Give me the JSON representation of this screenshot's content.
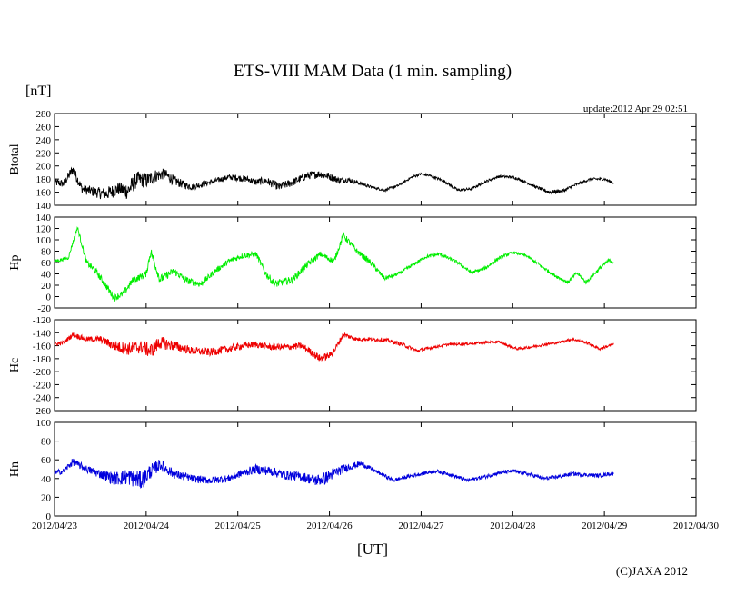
{
  "chart_data": {
    "type": "line",
    "title": "ETS-VIII MAM Data (1 min. sampling)",
    "yunit": "[nT]",
    "xlabel": "[UT]",
    "update_text": "update:2012 Apr 29 02:51",
    "copyright": "(C)JAXA 2012",
    "x_ticks": [
      "2012/04/23",
      "2012/04/24",
      "2012/04/25",
      "2012/04/26",
      "2012/04/27",
      "2012/04/28",
      "2012/04/29",
      "2012/04/30"
    ],
    "xlim": [
      0,
      7
    ],
    "data_end_day": 6.1,
    "panels": [
      {
        "name": "Btotal",
        "color": "#000000",
        "ylim": [
          140,
          280
        ],
        "yticks": [
          "140",
          "160",
          "180",
          "200",
          "220",
          "240",
          "260",
          "280"
        ],
        "x": [
          0,
          0.1,
          0.2,
          0.3,
          0.45,
          0.55,
          0.7,
          0.8,
          0.9,
          1.0,
          1.1,
          1.2,
          1.3,
          1.4,
          1.5,
          1.7,
          1.9,
          2.0,
          2.1,
          2.2,
          2.3,
          2.45,
          2.6,
          2.75,
          2.9,
          3.0,
          3.1,
          3.2,
          3.3,
          3.45,
          3.6,
          3.75,
          3.9,
          4.0,
          4.1,
          4.25,
          4.4,
          4.55,
          4.7,
          4.85,
          5.0,
          5.1,
          5.25,
          5.4,
          5.55,
          5.7,
          5.85,
          6.0,
          6.1
        ],
        "y": [
          175,
          173,
          195,
          165,
          160,
          157,
          165,
          162,
          180,
          178,
          185,
          188,
          178,
          172,
          168,
          175,
          183,
          182,
          180,
          175,
          178,
          168,
          175,
          185,
          188,
          184,
          178,
          179,
          175,
          168,
          163,
          170,
          183,
          188,
          185,
          177,
          163,
          165,
          176,
          184,
          183,
          178,
          168,
          160,
          162,
          172,
          180,
          180,
          174
        ],
        "noise": [
          6,
          6,
          8,
          7,
          8,
          10,
          10,
          14,
          12,
          12,
          10,
          8,
          8,
          6,
          5,
          4,
          4,
          5,
          5,
          5,
          6,
          6,
          6,
          6,
          6,
          6,
          5,
          4,
          3,
          2,
          2,
          2,
          2,
          2,
          2,
          2,
          2,
          2,
          2,
          2,
          2,
          2,
          2,
          3,
          3,
          2,
          2,
          2,
          2
        ]
      },
      {
        "name": "Hp",
        "color": "#00ee00",
        "ylim": [
          -20,
          140
        ],
        "yticks": [
          "-20",
          "0",
          "20",
          "40",
          "60",
          "80",
          "100",
          "120",
          "140"
        ],
        "x": [
          0,
          0.15,
          0.25,
          0.35,
          0.45,
          0.55,
          0.65,
          0.75,
          0.85,
          1.0,
          1.05,
          1.15,
          1.3,
          1.45,
          1.6,
          1.75,
          1.9,
          2.05,
          2.2,
          2.3,
          2.4,
          2.6,
          2.75,
          2.9,
          3.05,
          3.15,
          3.3,
          3.45,
          3.6,
          3.75,
          3.9,
          4.05,
          4.2,
          4.4,
          4.55,
          4.7,
          4.85,
          5.0,
          5.15,
          5.3,
          5.45,
          5.6,
          5.7,
          5.8,
          5.95,
          6.05,
          6.1
        ],
        "y": [
          62,
          68,
          122,
          60,
          45,
          22,
          -2,
          5,
          28,
          40,
          80,
          30,
          45,
          28,
          22,
          45,
          62,
          72,
          75,
          42,
          22,
          30,
          55,
          75,
          62,
          108,
          80,
          60,
          32,
          40,
          55,
          70,
          75,
          60,
          42,
          50,
          68,
          78,
          72,
          55,
          38,
          25,
          42,
          25,
          50,
          64,
          60
        ],
        "noise": [
          3,
          3,
          4,
          5,
          6,
          6,
          6,
          6,
          6,
          6,
          8,
          8,
          6,
          6,
          6,
          5,
          5,
          5,
          5,
          6,
          7,
          6,
          6,
          5,
          5,
          6,
          5,
          5,
          4,
          3,
          3,
          3,
          3,
          3,
          3,
          3,
          3,
          2,
          2,
          3,
          3,
          3,
          3,
          3,
          3,
          3,
          3
        ]
      },
      {
        "name": "Hc",
        "color": "#ee0000",
        "ylim": [
          -260,
          -120
        ],
        "yticks": [
          "-260",
          "-240",
          "-220",
          "-200",
          "-180",
          "-160",
          "-140",
          "-120"
        ],
        "x": [
          0,
          0.1,
          0.2,
          0.35,
          0.5,
          0.65,
          0.8,
          0.95,
          1.05,
          1.15,
          1.3,
          1.5,
          1.7,
          1.9,
          2.05,
          2.2,
          2.35,
          2.55,
          2.7,
          2.9,
          3.0,
          3.05,
          3.15,
          3.3,
          3.45,
          3.6,
          3.8,
          3.95,
          4.15,
          4.3,
          4.5,
          4.7,
          4.85,
          4.95,
          5.05,
          5.2,
          5.35,
          5.5,
          5.65,
          5.8,
          5.95,
          6.05,
          6.1
        ],
        "y": [
          -158,
          -155,
          -143,
          -150,
          -150,
          -160,
          -165,
          -162,
          -168,
          -155,
          -160,
          -168,
          -170,
          -165,
          -160,
          -158,
          -162,
          -162,
          -160,
          -180,
          -175,
          -168,
          -143,
          -150,
          -150,
          -151,
          -158,
          -168,
          -162,
          -158,
          -157,
          -155,
          -154,
          -160,
          -165,
          -162,
          -158,
          -155,
          -150,
          -155,
          -165,
          -160,
          -158
        ],
        "noise": [
          3,
          3,
          4,
          4,
          5,
          8,
          10,
          10,
          12,
          10,
          8,
          6,
          6,
          6,
          5,
          5,
          5,
          5,
          5,
          6,
          5,
          5,
          4,
          3,
          3,
          3,
          3,
          3,
          2,
          2,
          2,
          2,
          2,
          2,
          2,
          2,
          2,
          2,
          2,
          2,
          2,
          2,
          2
        ]
      },
      {
        "name": "Hn",
        "color": "#0000dd",
        "ylim": [
          0,
          100
        ],
        "yticks": [
          "0",
          "20",
          "40",
          "60",
          "80",
          "100"
        ],
        "x": [
          0,
          0.1,
          0.2,
          0.35,
          0.5,
          0.65,
          0.8,
          0.95,
          1.05,
          1.15,
          1.3,
          1.5,
          1.7,
          1.9,
          2.05,
          2.2,
          2.35,
          2.5,
          2.7,
          2.85,
          2.95,
          3.05,
          3.2,
          3.35,
          3.5,
          3.7,
          3.85,
          4.0,
          4.15,
          4.3,
          4.5,
          4.7,
          4.85,
          5.0,
          5.2,
          5.35,
          5.5,
          5.65,
          5.8,
          5.95,
          6.05,
          6.1
        ],
        "y": [
          46,
          48,
          58,
          50,
          45,
          40,
          42,
          38,
          48,
          55,
          45,
          40,
          38,
          40,
          46,
          50,
          48,
          44,
          42,
          38,
          40,
          46,
          52,
          56,
          48,
          38,
          42,
          45,
          48,
          45,
          38,
          42,
          46,
          48,
          44,
          40,
          42,
          45,
          44,
          43,
          45,
          45
        ],
        "noise": [
          3,
          3,
          4,
          4,
          5,
          7,
          9,
          10,
          8,
          6,
          5,
          4,
          4,
          4,
          4,
          5,
          5,
          5,
          5,
          6,
          7,
          6,
          4,
          3,
          2,
          2,
          2,
          2,
          2,
          2,
          2,
          2,
          2,
          2,
          2,
          2,
          2,
          2,
          2,
          2,
          2,
          2
        ]
      }
    ]
  }
}
